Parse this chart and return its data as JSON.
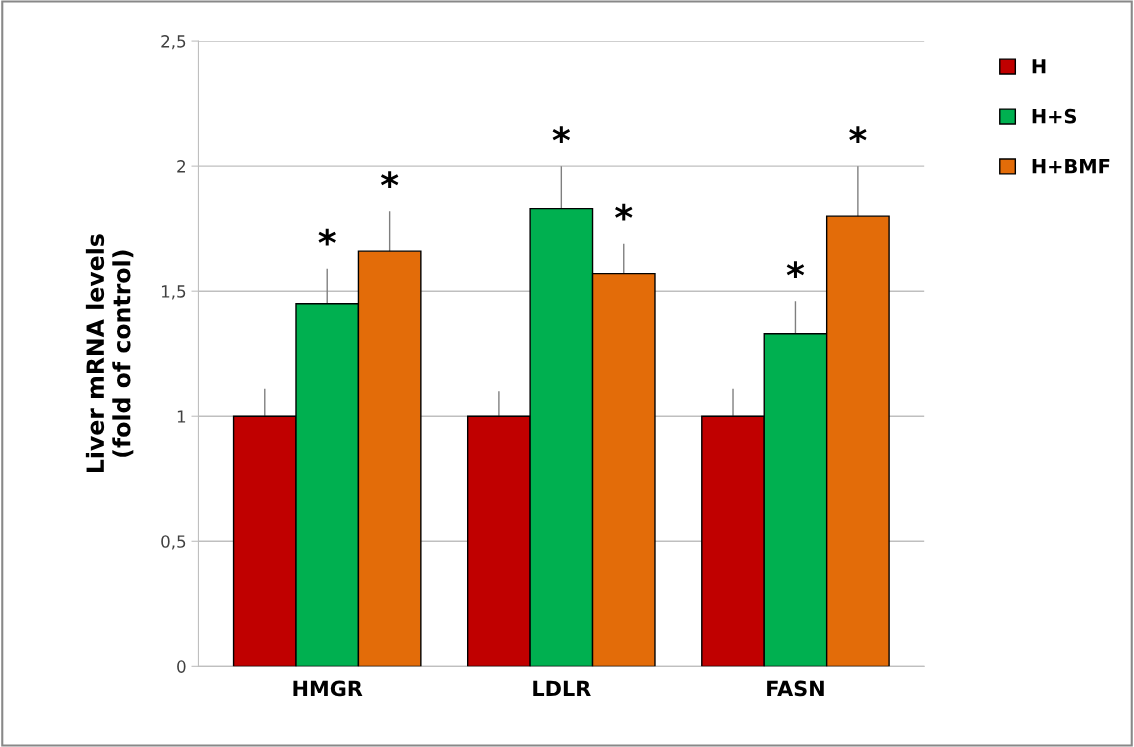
{
  "chart_data": {
    "type": "bar",
    "ylabel": "Liver mRNA levels\n(fold of control)",
    "categories": [
      "HMGR",
      "LDLR",
      "FASN"
    ],
    "series": [
      {
        "name": "H",
        "color": "#c00000",
        "values": [
          1.0,
          1.0,
          1.0
        ],
        "errors": [
          [
            1.0,
            1.11
          ],
          [
            1.0,
            1.1
          ],
          [
            1.0,
            1.11
          ]
        ]
      },
      {
        "name": "H+S",
        "color": "#00b050",
        "values": [
          1.45,
          1.83,
          1.33
        ],
        "errors": [
          [
            1.45,
            1.59
          ],
          [
            1.83,
            2.0
          ],
          [
            1.33,
            1.46
          ]
        ],
        "value_labels": [
          "*",
          "*",
          "*"
        ]
      },
      {
        "name": "H+BMF",
        "color": "#e36c09",
        "values": [
          1.66,
          1.57,
          1.8
        ],
        "errors": [
          [
            1.66,
            1.82
          ],
          [
            1.57,
            1.69
          ],
          [
            1.8,
            2.0
          ]
        ],
        "value_labels": [
          "*",
          "*",
          "*"
        ]
      }
    ],
    "ylim": [
      0,
      2.5
    ],
    "yticks": [
      0,
      {
        "value": 0.5,
        "label": "0,5"
      },
      1,
      {
        "value": 1.5,
        "label": "1,5"
      },
      2,
      {
        "value": 2.5,
        "label": "2,5"
      }
    ],
    "grid": "y",
    "legend": "top right"
  }
}
